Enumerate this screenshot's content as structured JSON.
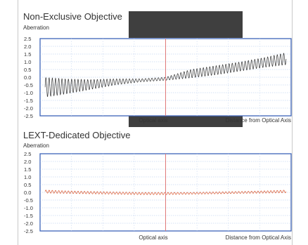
{
  "chart_data": [
    {
      "type": "line",
      "title": "Non-Exclusive Objective",
      "ylabel": "Aberration",
      "xlabel": "Distance from Optical Axis",
      "center_label": "Optical axis",
      "ylim": [
        -2.5,
        2.5
      ],
      "yticks": [
        "2.5",
        "2.0",
        "1.5",
        "1.0",
        "0.5",
        "0.0",
        "-0.5",
        "-1.0",
        "-1.5",
        "-2.0",
        "-2.5"
      ],
      "grid": true,
      "x_domain": [
        -1,
        1
      ],
      "series": [
        {
          "color": "#333333",
          "x": [
            -0.96,
            -0.8,
            -0.6,
            -0.4,
            -0.2,
            0,
            0.2,
            0.4,
            0.6,
            0.8,
            0.96
          ],
          "y_low": [
            -1.3,
            -1.1,
            -0.8,
            -0.5,
            -0.3,
            -0.2,
            -0.05,
            0.15,
            0.4,
            0.65,
            0.8
          ],
          "y_high": [
            0.0,
            -0.1,
            -0.15,
            -0.1,
            -0.1,
            0.0,
            0.5,
            0.75,
            1.0,
            1.3,
            1.6
          ]
        }
      ]
    },
    {
      "type": "line",
      "title": "LEXT-Dedicated Objective",
      "ylabel": "Aberration",
      "xlabel": "Distance from Optical Axis",
      "center_label": "Optical axis",
      "ylim": [
        -2.5,
        2.5
      ],
      "yticks": [
        "2.5",
        "2.0",
        "1.5",
        "1.0",
        "0.5",
        "0.0",
        "-0.5",
        "-1.0",
        "-1.5",
        "-2.0",
        "-2.5"
      ],
      "grid": true,
      "x_domain": [
        -1,
        1
      ],
      "series": [
        {
          "color": "#d9542c",
          "x": [
            -0.96,
            -0.8,
            -0.6,
            -0.4,
            -0.2,
            0,
            0.2,
            0.4,
            0.6,
            0.8,
            0.96
          ],
          "y_low": [
            -0.05,
            -0.07,
            -0.1,
            -0.12,
            -0.15,
            -0.15,
            -0.12,
            -0.1,
            -0.07,
            -0.05,
            -0.03
          ],
          "y_high": [
            0.15,
            0.1,
            0.06,
            0.03,
            0.0,
            0.0,
            0.0,
            0.03,
            0.06,
            0.1,
            0.15
          ]
        }
      ]
    }
  ]
}
